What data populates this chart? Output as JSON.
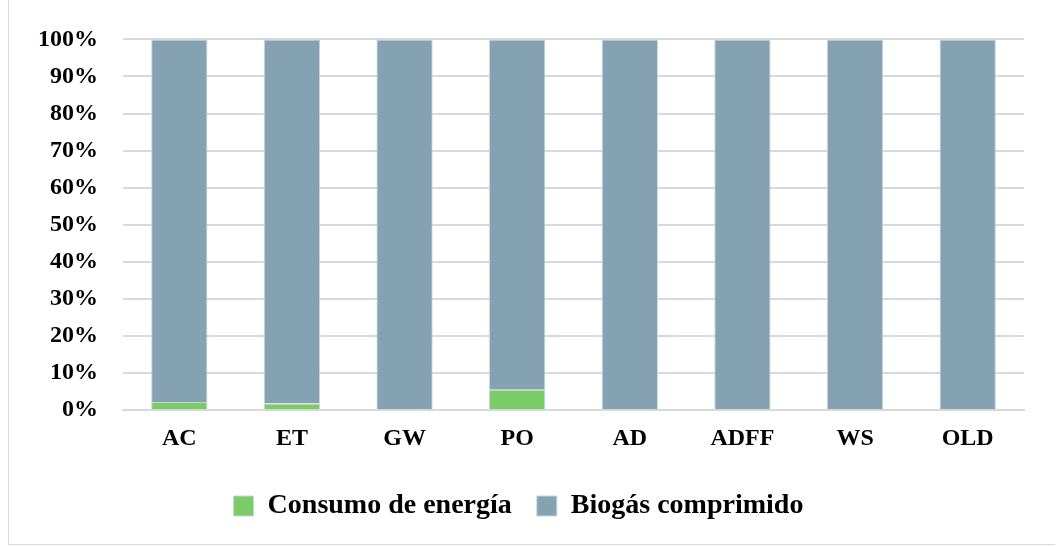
{
  "chart_data": {
    "type": "bar",
    "stacked": true,
    "categories": [
      "AC",
      "ET",
      "GW",
      "PO",
      "AD",
      "ADFF",
      "WS",
      "OLD"
    ],
    "series": [
      {
        "name": "Consumo de energía",
        "color": "#7acc66",
        "values": [
          2.2,
          1.8,
          0,
          5.5,
          0,
          0,
          0,
          0
        ]
      },
      {
        "name": "Biogás comprimido",
        "color": "#84a2b2",
        "values": [
          97.8,
          98.2,
          100,
          94.5,
          100,
          100,
          100,
          100
        ]
      }
    ],
    "ylim": [
      0,
      100
    ],
    "yticks": [
      {
        "value": 0,
        "label": "0%"
      },
      {
        "value": 10,
        "label": "10%"
      },
      {
        "value": 20,
        "label": "20%"
      },
      {
        "value": 30,
        "label": "30%"
      },
      {
        "value": 40,
        "label": "40%"
      },
      {
        "value": 50,
        "label": "50%"
      },
      {
        "value": 60,
        "label": "60%"
      },
      {
        "value": 70,
        "label": "70%"
      },
      {
        "value": 80,
        "label": "80%"
      },
      {
        "value": 90,
        "label": "90%"
      },
      {
        "value": 100,
        "label": "100%"
      }
    ],
    "grid": "y",
    "legend": "bottom"
  }
}
